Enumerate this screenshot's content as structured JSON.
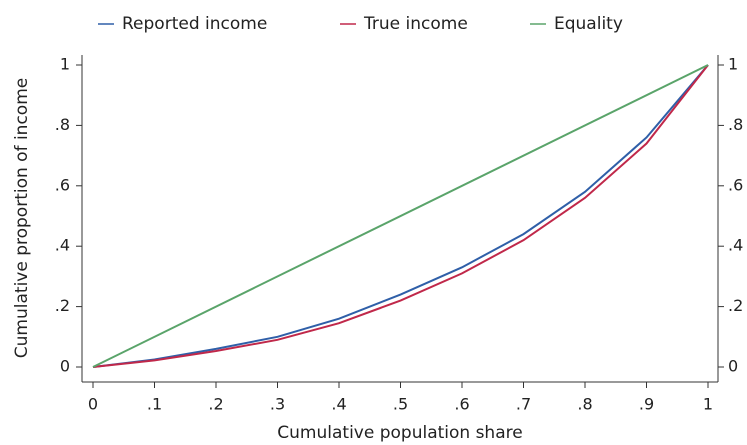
{
  "chart_data": {
    "type": "line",
    "xlabel": "Cumulative population share",
    "ylabel": "Cumulative proportion of income",
    "x": [
      0,
      0.1,
      0.2,
      0.3,
      0.4,
      0.5,
      0.6,
      0.7,
      0.8,
      0.9,
      1
    ],
    "series": [
      {
        "name": "Reported income",
        "color": "#2f5fa8",
        "values": [
          0,
          0.025,
          0.06,
          0.1,
          0.16,
          0.24,
          0.33,
          0.44,
          0.58,
          0.76,
          1
        ]
      },
      {
        "name": "True income",
        "color": "#c0284a",
        "values": [
          0,
          0.022,
          0.053,
          0.09,
          0.145,
          0.22,
          0.31,
          0.42,
          0.56,
          0.74,
          1
        ]
      },
      {
        "name": "Equality",
        "color": "#5aa46a",
        "x": [
          0,
          1
        ],
        "values": [
          0,
          1
        ]
      }
    ],
    "xlim": [
      0,
      1
    ],
    "ylim": [
      0,
      1
    ],
    "xticks": [
      0,
      {
        "value": 0.1,
        "label": ".1"
      },
      {
        "value": 0.2,
        "label": ".2"
      },
      {
        "value": 0.3,
        "label": ".3"
      },
      {
        "value": 0.4,
        "label": ".4"
      },
      {
        "value": 0.5,
        "label": ".5"
      },
      {
        "value": 0.6,
        "label": ".6"
      },
      {
        "value": 0.7,
        "label": ".7"
      },
      {
        "value": 0.8,
        "label": ".8"
      },
      {
        "value": 0.9,
        "label": ".9"
      },
      1
    ],
    "yticks": [
      0,
      {
        "value": 0.2,
        "label": ".2"
      },
      {
        "value": 0.4,
        "label": ".4"
      },
      {
        "value": 0.6,
        "label": ".6"
      },
      {
        "value": 0.8,
        "label": ".8"
      },
      1
    ],
    "grid": false,
    "legend": "top"
  }
}
